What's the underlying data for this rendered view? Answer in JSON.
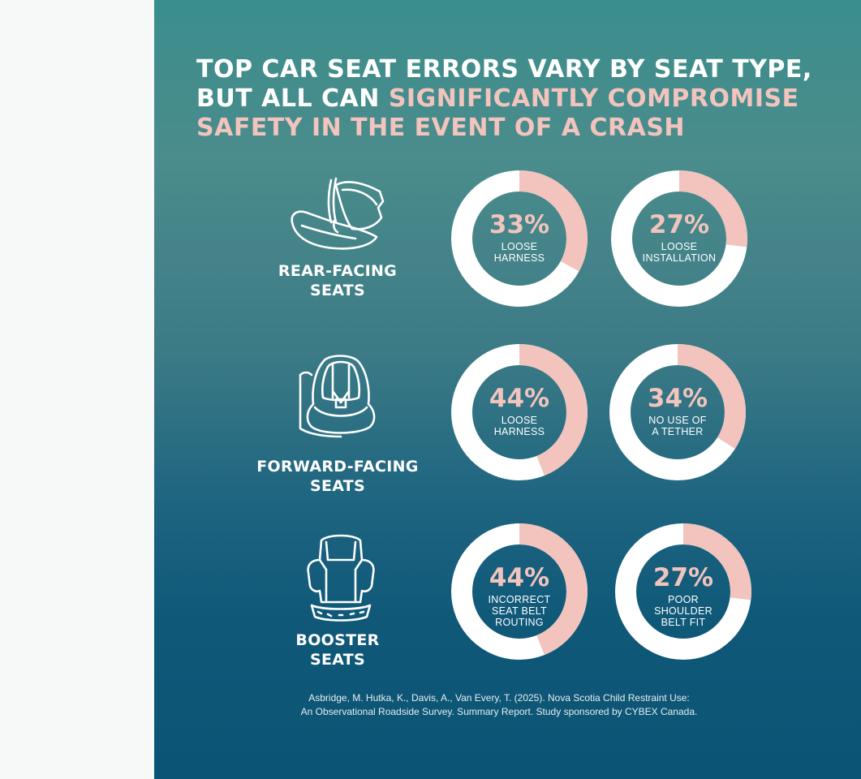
{
  "headline": {
    "white": "TOP CAR SEAT ERRORS VARY BY SEAT TYPE, BUT ALL CAN ",
    "highlight": "SIGNIFICANTLY COMPROMISE SAFETY IN THE EVENT OF A CRASH"
  },
  "colors": {
    "highlight": "#f2c4bd",
    "ring": "#ffffff",
    "panel_top": "#3a8e8d",
    "panel_bottom": "#0c5475"
  },
  "seats": [
    {
      "label": "REAR-FACING\nSEATS",
      "icon": "rear-facing-seat-icon",
      "stats": [
        {
          "pct": "33%",
          "caption": "LOOSE\nHARNESS"
        },
        {
          "pct": "27%",
          "caption": "LOOSE\nINSTALLATION"
        }
      ]
    },
    {
      "label": "FORWARD-FACING\nSEATS",
      "icon": "forward-facing-seat-icon",
      "stats": [
        {
          "pct": "44%",
          "caption": "LOOSE\nHARNESS"
        },
        {
          "pct": "34%",
          "caption": "NO USE OF\nA TETHER"
        }
      ]
    },
    {
      "label": "BOOSTER\nSEATS",
      "icon": "booster-seat-icon",
      "stats": [
        {
          "pct": "44%",
          "caption": "INCORRECT\nSEAT BELT\nROUTING"
        },
        {
          "pct": "27%",
          "caption": "POOR\nSHOULDER\nBELT FIT"
        }
      ]
    }
  ],
  "chart_data": {
    "type": "pie",
    "series": [
      {
        "name": "REAR-FACING SEATS",
        "categories": [
          "LOOSE HARNESS",
          "LOOSE INSTALLATION"
        ],
        "values": [
          33,
          27
        ]
      },
      {
        "name": "FORWARD-FACING SEATS",
        "categories": [
          "LOOSE HARNESS",
          "NO USE OF A TETHER"
        ],
        "values": [
          44,
          34
        ]
      },
      {
        "name": "BOOSTER SEATS",
        "categories": [
          "INCORRECT SEAT BELT ROUTING",
          "POOR SHOULDER BELT FIT"
        ],
        "values": [
          44,
          27
        ]
      }
    ]
  },
  "citation": "Asbridge, M. Hutka, K., Davis, A., Van Every, T. (2025). Nova Scotia Child Restraint Use:\nAn Observational Roadside Survey. Summary Report. Study sponsored by CYBEX Canada."
}
